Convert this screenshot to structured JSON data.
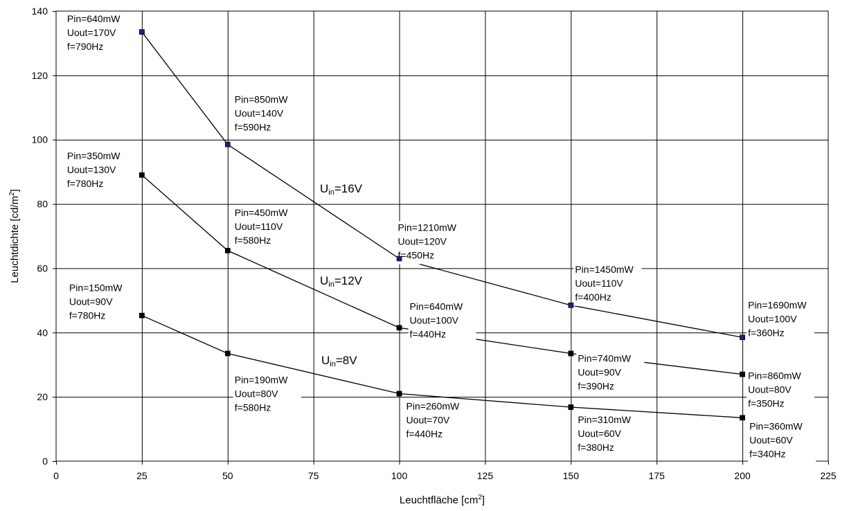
{
  "chart_data": {
    "type": "line",
    "title": "",
    "xlabel_main": "Leuchtfläche [cm",
    "xlabel_sup": "2",
    "xlabel_end": "]",
    "ylabel_main": "Leuchtdichte [cd/m",
    "ylabel_sup": "2",
    "ylabel_end": "]",
    "xlim": [
      0,
      225
    ],
    "ylim": [
      0,
      140
    ],
    "xticks": [
      0,
      25,
      50,
      75,
      100,
      125,
      150,
      175,
      200,
      225
    ],
    "yticks": [
      0,
      20,
      40,
      60,
      80,
      100,
      120,
      140
    ],
    "xtick_labels": [
      "0",
      "25",
      "50",
      "75",
      "100",
      "125",
      "150",
      "175",
      "200",
      "225"
    ],
    "ytick_labels": [
      "0",
      "20",
      "40",
      "60",
      "80",
      "100",
      "120",
      "140"
    ],
    "grid": true,
    "colors": {
      "line": "#000000",
      "grid": "#000000",
      "marker_16v": "#1f1f7a",
      "marker_other": "#000000"
    },
    "series": [
      {
        "name_main": "U",
        "name_sub": "in",
        "name_end": "=16V",
        "x": [
          25,
          50,
          100,
          150,
          200
        ],
        "y": [
          133.5,
          98.5,
          63,
          48.5,
          38.5
        ],
        "annotations": [
          [
            "Pin=640mW",
            "Uout=170V",
            "f=790Hz"
          ],
          [
            "Pin=850mW",
            "Uout=140V",
            "f=590Hz"
          ],
          [
            "Pin=1210mW",
            "Uout=120V",
            "f=450Hz"
          ],
          [
            "Pin=1450mW",
            "Uout=110V",
            "f=400Hz"
          ],
          [
            "Pin=1690mW",
            "Uout=100V",
            "f=360Hz"
          ]
        ]
      },
      {
        "name_main": "U",
        "name_sub": "in",
        "name_end": "=12V",
        "x": [
          25,
          50,
          100,
          150,
          200
        ],
        "y": [
          89,
          65.5,
          41.5,
          33.5,
          27
        ],
        "annotations": [
          [
            "Pin=350mW",
            "Uout=130V",
            "f=780Hz"
          ],
          [
            "Pin=450mW",
            "Uout=110V",
            "f=580Hz"
          ],
          [
            "Pin=640mW",
            "Uout=100V",
            "f=440Hz"
          ],
          [
            "Pin=740mW",
            "Uout=90V",
            "f=390Hz"
          ],
          [
            "Pin=860mW",
            "Uout=80V",
            "f=350Hz"
          ]
        ]
      },
      {
        "name_main": "U",
        "name_sub": "in",
        "name_end": "=8V",
        "x": [
          25,
          50,
          100,
          150,
          200
        ],
        "y": [
          45.3,
          33.5,
          21,
          16.8,
          13.5
        ],
        "annotations": [
          [
            "Pin=150mW",
            "Uout=90V",
            "f=780Hz"
          ],
          [
            "Pin=190mW",
            "Uout=80V",
            "f=580Hz"
          ],
          [
            "Pin=260mW",
            "Uout=70V",
            "f=440Hz"
          ],
          [
            "Pin=310mW",
            "Uout=60V",
            "f=380Hz"
          ],
          [
            "Pin=360mW",
            "Uout=60V",
            "f=340Hz"
          ]
        ]
      }
    ]
  }
}
